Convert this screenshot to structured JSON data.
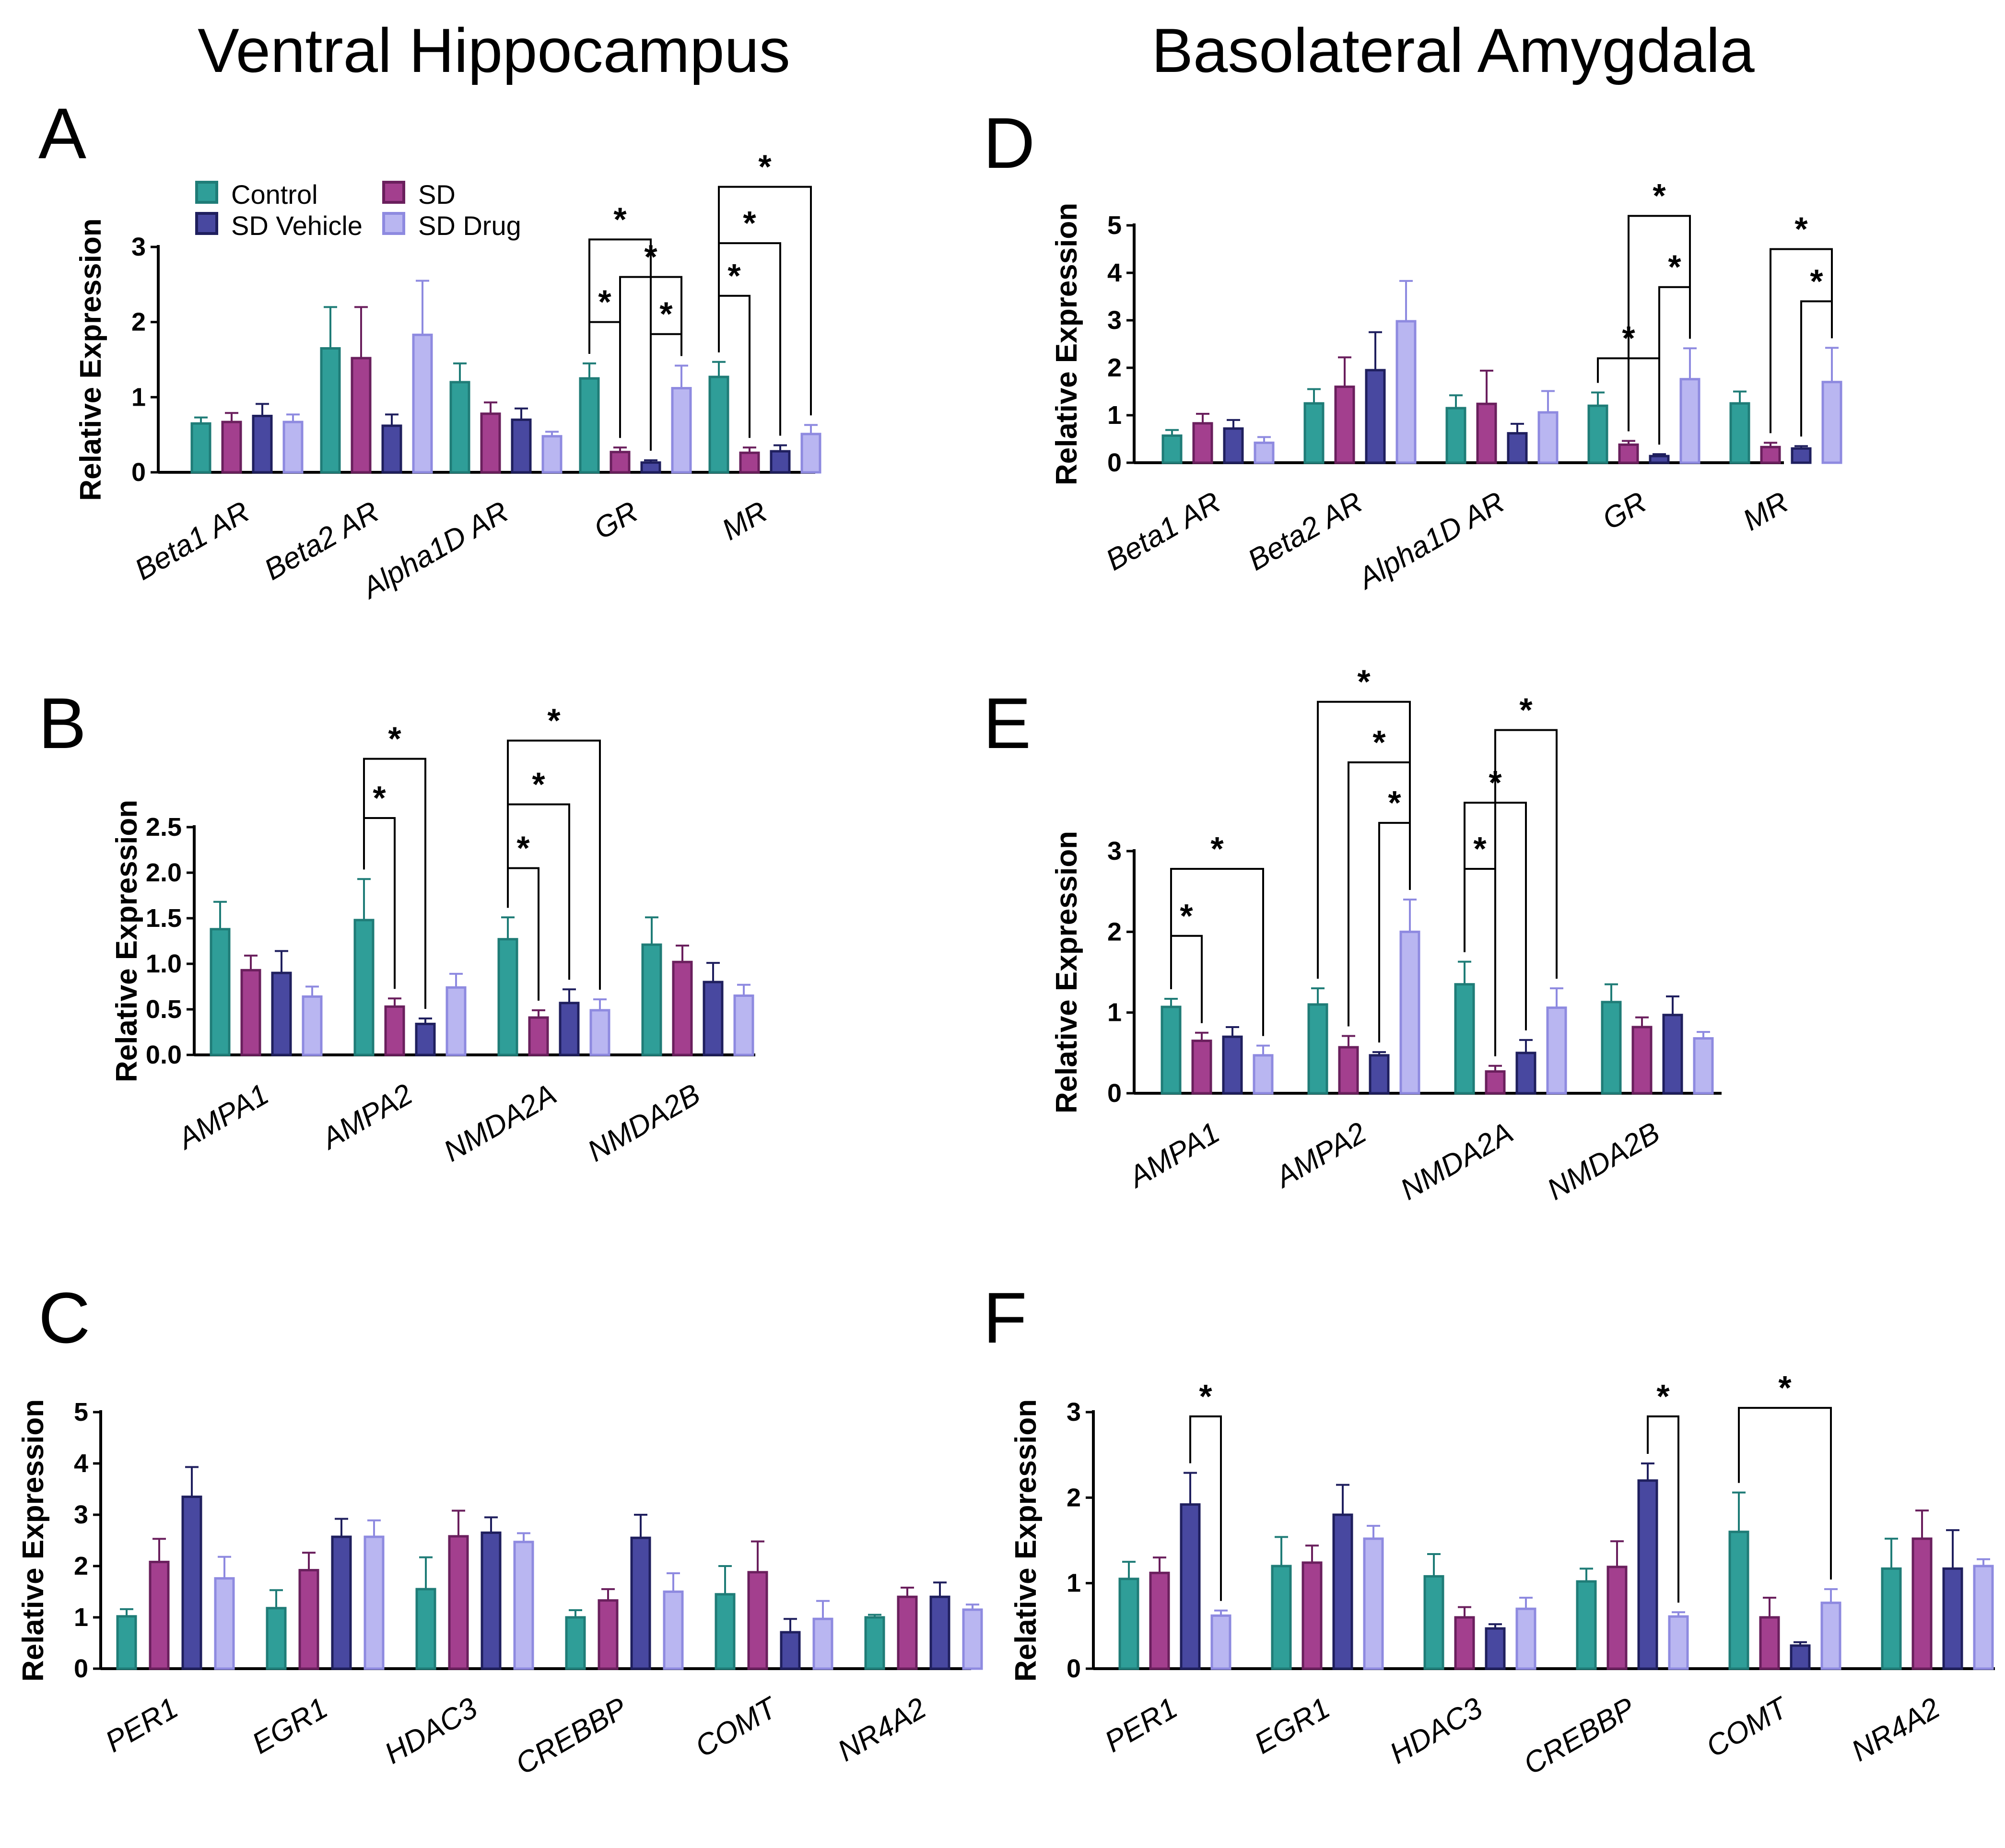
{
  "titles": {
    "left": "Ventral Hippocampus",
    "right": "Basolateral Amygdala"
  },
  "legend": [
    {
      "name": "Control",
      "fill": "#2f9e98",
      "stroke": "#1f7c77"
    },
    {
      "name": "SD",
      "fill": "#a33f8e",
      "stroke": "#6a1f5d"
    },
    {
      "name": "SD Vehicle",
      "fill": "#4848a0",
      "stroke": "#1f1f5e"
    },
    {
      "name": "SD Drug",
      "fill": "#b9b6f1",
      "stroke": "#8e8ae0"
    }
  ],
  "chart_data": [
    {
      "panel": "A",
      "type": "bar",
      "ylabel": "Relative Expression",
      "ylim": [
        0,
        3
      ],
      "yticks": [
        "0",
        "1",
        "2",
        "3"
      ],
      "tickvals": [
        0,
        1,
        2,
        3
      ],
      "categories": [
        "Beta1 AR",
        "Beta2 AR",
        "Alpha1D AR",
        "GR",
        "MR"
      ],
      "series": [
        {
          "name": "Control",
          "values": [
            0.65,
            1.65,
            1.2,
            1.25,
            1.27
          ],
          "errors": [
            0.08,
            0.55,
            0.25,
            0.2,
            0.2
          ]
        },
        {
          "name": "SD",
          "values": [
            0.67,
            1.52,
            0.78,
            0.27,
            0.26
          ],
          "errors": [
            0.12,
            0.68,
            0.15,
            0.06,
            0.07
          ]
        },
        {
          "name": "SD Vehicle",
          "values": [
            0.75,
            0.62,
            0.7,
            0.13,
            0.28
          ],
          "errors": [
            0.16,
            0.15,
            0.15,
            0.03,
            0.08
          ]
        },
        {
          "name": "SD Drug",
          "values": [
            0.67,
            1.83,
            0.48,
            1.12,
            0.51
          ],
          "errors": [
            0.1,
            0.72,
            0.06,
            0.3,
            0.12
          ]
        }
      ],
      "significance": [
        {
          "category": 3,
          "from": 0,
          "to": 2,
          "level": 3.1,
          "label": "*"
        },
        {
          "category": 3,
          "from": 0,
          "to": 1,
          "level": 2.0,
          "label": "*"
        },
        {
          "category": 3,
          "from": 1,
          "to": 3,
          "level": 2.6,
          "label": "*"
        },
        {
          "category": 3,
          "from": 2,
          "to": 3,
          "level": 1.84,
          "label": "*"
        },
        {
          "category": 4,
          "from": 0,
          "to": 3,
          "level": 3.8,
          "label": "*"
        },
        {
          "category": 4,
          "from": 0,
          "to": 2,
          "level": 3.05,
          "label": "*"
        },
        {
          "category": 4,
          "from": 0,
          "to": 1,
          "level": 2.35,
          "label": "*"
        }
      ]
    },
    {
      "panel": "B",
      "type": "bar",
      "ylabel": "Relative Expression",
      "ylim": [
        0,
        2.5
      ],
      "yticks": [
        "0.0",
        "0.5",
        "1.0",
        "1.5",
        "2.0",
        "2.5"
      ],
      "tickvals": [
        0,
        0.5,
        1,
        1.5,
        2,
        2.5
      ],
      "categories": [
        "AMPA1",
        "AMPA2",
        "NMDA2A",
        "NMDA2B"
      ],
      "series": [
        {
          "name": "Control",
          "values": [
            1.38,
            1.48,
            1.27,
            1.21
          ],
          "errors": [
            0.3,
            0.45,
            0.24,
            0.3
          ]
        },
        {
          "name": "SD",
          "values": [
            0.93,
            0.53,
            0.41,
            1.02
          ],
          "errors": [
            0.16,
            0.09,
            0.08,
            0.18
          ]
        },
        {
          "name": "SD Vehicle",
          "values": [
            0.9,
            0.34,
            0.57,
            0.8
          ],
          "errors": [
            0.24,
            0.06,
            0.15,
            0.21
          ]
        },
        {
          "name": "SD Drug",
          "values": [
            0.64,
            0.74,
            0.49,
            0.65
          ],
          "errors": [
            0.11,
            0.15,
            0.12,
            0.12
          ]
        }
      ],
      "significance": [
        {
          "category": 1,
          "from": 0,
          "to": 2,
          "level": 3.25,
          "label": "*"
        },
        {
          "category": 1,
          "from": 0,
          "to": 1,
          "level": 2.6,
          "label": "*"
        },
        {
          "category": 2,
          "from": 0,
          "to": 3,
          "level": 3.45,
          "label": "*"
        },
        {
          "category": 2,
          "from": 0,
          "to": 2,
          "level": 2.75,
          "label": "*"
        },
        {
          "category": 2,
          "from": 0,
          "to": 1,
          "level": 2.05,
          "label": "*"
        }
      ]
    },
    {
      "panel": "C",
      "type": "bar",
      "ylabel": "Relative Expression",
      "ylim": [
        0,
        5
      ],
      "yticks": [
        "0",
        "1",
        "2",
        "3",
        "4",
        "5"
      ],
      "tickvals": [
        0,
        1,
        2,
        3,
        4,
        5
      ],
      "categories": [
        "PER1",
        "EGR1",
        "HDAC3",
        "CREBBP",
        "COMT",
        "NR4A2"
      ],
      "series": [
        {
          "name": "Control",
          "values": [
            1.02,
            1.18,
            1.55,
            1.0,
            1.45,
            1.0
          ],
          "errors": [
            0.14,
            0.35,
            0.62,
            0.14,
            0.55,
            0.05
          ]
        },
        {
          "name": "SD",
          "values": [
            2.08,
            1.92,
            2.58,
            1.33,
            1.88,
            1.4
          ],
          "errors": [
            0.45,
            0.34,
            0.5,
            0.22,
            0.6,
            0.18
          ]
        },
        {
          "name": "SD Vehicle",
          "values": [
            3.35,
            2.57,
            2.65,
            2.55,
            0.71,
            1.4
          ],
          "errors": [
            0.58,
            0.35,
            0.3,
            0.45,
            0.26,
            0.28
          ]
        },
        {
          "name": "SD Drug",
          "values": [
            1.76,
            2.57,
            2.47,
            1.5,
            0.97,
            1.15
          ],
          "errors": [
            0.42,
            0.32,
            0.17,
            0.36,
            0.35,
            0.1
          ]
        }
      ],
      "significance": []
    },
    {
      "panel": "D",
      "type": "bar",
      "ylabel": "Relative Expression",
      "ylim": [
        0,
        5
      ],
      "yticks": [
        "0",
        "1",
        "2",
        "3",
        "4",
        "5"
      ],
      "tickvals": [
        0,
        1,
        2,
        3,
        4,
        5
      ],
      "categories": [
        "Beta1 AR",
        "Beta2 AR",
        "Alpha1D AR",
        "GR",
        "MR"
      ],
      "series": [
        {
          "name": "Control",
          "values": [
            0.57,
            1.25,
            1.15,
            1.2,
            1.25
          ],
          "errors": [
            0.12,
            0.3,
            0.27,
            0.28,
            0.25
          ]
        },
        {
          "name": "SD",
          "values": [
            0.83,
            1.6,
            1.24,
            0.38,
            0.33
          ],
          "errors": [
            0.2,
            0.62,
            0.7,
            0.08,
            0.09
          ]
        },
        {
          "name": "SD Vehicle",
          "values": [
            0.72,
            1.95,
            0.62,
            0.14,
            0.3
          ],
          "errors": [
            0.18,
            0.8,
            0.2,
            0.04,
            0.05
          ]
        },
        {
          "name": "SD Drug",
          "values": [
            0.42,
            2.98,
            1.06,
            1.76,
            1.7
          ],
          "errors": [
            0.12,
            0.85,
            0.45,
            0.65,
            0.72
          ]
        }
      ],
      "significance": [
        {
          "category": 3,
          "from": 0,
          "to": 2,
          "level": 2.2,
          "label": "*"
        },
        {
          "category": 3,
          "from": 2,
          "to": 3,
          "level": 3.7,
          "label": "*"
        },
        {
          "category": 3,
          "from": 1,
          "to": 3,
          "level": 5.2,
          "label": "*"
        },
        {
          "category": 4,
          "from": 1,
          "to": 3,
          "level": 4.5,
          "label": "*"
        },
        {
          "category": 4,
          "from": 2,
          "to": 3,
          "level": 3.4,
          "label": "*"
        }
      ]
    },
    {
      "panel": "E",
      "type": "bar",
      "ylabel": "Relative Expression",
      "ylim": [
        0,
        3
      ],
      "yticks": [
        "0",
        "1",
        "2",
        "3"
      ],
      "tickvals": [
        0,
        1,
        2,
        3
      ],
      "categories": [
        "AMPA1",
        "AMPA2",
        "NMDA2A",
        "NMDA2B"
      ],
      "series": [
        {
          "name": "Control",
          "values": [
            1.07,
            1.1,
            1.35,
            1.13
          ],
          "errors": [
            0.1,
            0.2,
            0.28,
            0.22
          ]
        },
        {
          "name": "SD",
          "values": [
            0.65,
            0.57,
            0.27,
            0.82
          ],
          "errors": [
            0.1,
            0.14,
            0.07,
            0.12
          ]
        },
        {
          "name": "SD Vehicle",
          "values": [
            0.7,
            0.47,
            0.5,
            0.97
          ],
          "errors": [
            0.12,
            0.04,
            0.16,
            0.23
          ]
        },
        {
          "name": "SD Drug",
          "values": [
            0.47,
            2.0,
            1.06,
            0.68
          ],
          "errors": [
            0.12,
            0.4,
            0.24,
            0.08
          ]
        }
      ],
      "significance": [
        {
          "category": 0,
          "from": 0,
          "to": 1,
          "level": 1.95,
          "label": "*"
        },
        {
          "category": 0,
          "from": 0,
          "to": 3,
          "level": 2.78,
          "label": "*"
        },
        {
          "category": 1,
          "from": 2,
          "to": 3,
          "level": 3.35,
          "label": "*"
        },
        {
          "category": 1,
          "from": 1,
          "to": 3,
          "level": 4.1,
          "label": "*"
        },
        {
          "category": 1,
          "from": 0,
          "to": 3,
          "level": 4.85,
          "label": "*"
        },
        {
          "category": 2,
          "from": 0,
          "to": 1,
          "level": 2.78,
          "label": "*"
        },
        {
          "category": 2,
          "from": 0,
          "to": 2,
          "level": 3.6,
          "label": "*"
        },
        {
          "category": 2,
          "from": 1,
          "to": 3,
          "level": 4.5,
          "label": "*"
        }
      ]
    },
    {
      "panel": "F",
      "type": "bar",
      "ylabel": "Relative Expression",
      "ylim": [
        0,
        3
      ],
      "yticks": [
        "0",
        "1",
        "2",
        "3"
      ],
      "tickvals": [
        0,
        1,
        2,
        3
      ],
      "categories": [
        "PER1",
        "EGR1",
        "HDAC3",
        "CREBBP",
        "COMT",
        "NR4A2"
      ],
      "series": [
        {
          "name": "Control",
          "values": [
            1.05,
            1.2,
            1.08,
            1.02,
            1.6,
            1.17
          ],
          "errors": [
            0.2,
            0.34,
            0.26,
            0.15,
            0.46,
            0.35
          ]
        },
        {
          "name": "SD",
          "values": [
            1.12,
            1.24,
            0.6,
            1.19,
            0.6,
            1.52
          ],
          "errors": [
            0.18,
            0.2,
            0.12,
            0.3,
            0.23,
            0.33
          ]
        },
        {
          "name": "SD Vehicle",
          "values": [
            1.92,
            1.8,
            0.47,
            2.2,
            0.27,
            1.17
          ],
          "errors": [
            0.37,
            0.35,
            0.05,
            0.2,
            0.04,
            0.45
          ]
        },
        {
          "name": "SD Drug",
          "values": [
            0.62,
            1.52,
            0.7,
            0.61,
            0.77,
            1.2
          ],
          "errors": [
            0.06,
            0.15,
            0.13,
            0.05,
            0.16,
            0.08
          ]
        }
      ],
      "significance": [
        {
          "category": 0,
          "from": 2,
          "to": 3,
          "level": 2.95,
          "label": "*"
        },
        {
          "category": 3,
          "from": 2,
          "to": 3,
          "level": 2.95,
          "label": "*"
        },
        {
          "category": 4,
          "from": 0,
          "to": 3,
          "level": 3.05,
          "label": "*"
        }
      ]
    }
  ]
}
